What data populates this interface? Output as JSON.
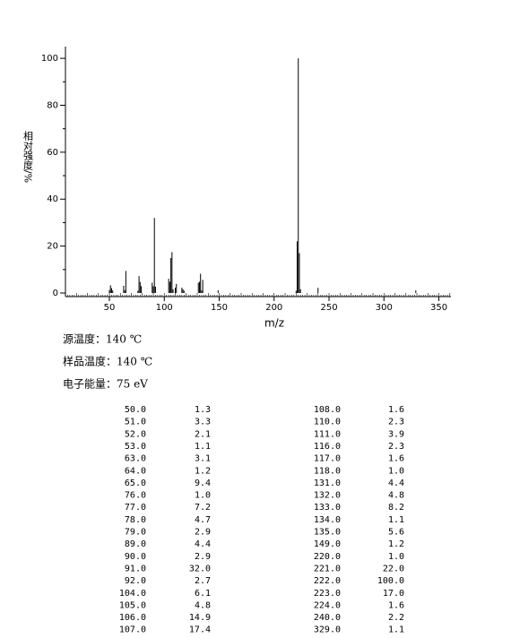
{
  "chart_data": {
    "type": "stem",
    "xlabel": "m/z",
    "ylabel": "相对强度/%",
    "xlim": [
      10,
      361
    ],
    "ylim": [
      0,
      105
    ],
    "xticks": [
      50,
      100,
      150,
      200,
      250,
      300,
      350
    ],
    "yticks": [
      0,
      20,
      40,
      60,
      80,
      100
    ],
    "color": "#000000",
    "annotations": [
      "源温度：140 ℃",
      "样品温度：140 ℃",
      "电子能量：75 eV"
    ],
    "x": [
      50,
      51,
      52,
      53,
      63,
      64,
      65,
      76,
      77,
      78,
      79,
      89,
      90,
      91,
      92,
      104,
      105,
      106,
      107,
      108,
      110,
      111,
      116,
      117,
      118,
      131,
      132,
      133,
      134,
      135,
      149,
      220,
      221,
      222,
      223,
      224,
      240,
      329
    ],
    "x_labels": [
      "50.0",
      "51.0",
      "52.0",
      "53.0",
      "63.0",
      "64.0",
      "65.0",
      "76.0",
      "77.0",
      "78.0",
      "79.0",
      "89.0",
      "90.0",
      "91.0",
      "92.0",
      "104.0",
      "105.0",
      "106.0",
      "107.0",
      "108.0",
      "110.0",
      "111.0",
      "116.0",
      "117.0",
      "118.0",
      "131.0",
      "132.0",
      "133.0",
      "134.0",
      "135.0",
      "149.0",
      "220.0",
      "221.0",
      "222.0",
      "223.0",
      "224.0",
      "240.0",
      "329.0"
    ],
    "values": [
      1.3,
      3.3,
      2.1,
      1.1,
      3.1,
      1.2,
      9.4,
      1.0,
      7.2,
      4.7,
      2.9,
      4.4,
      2.9,
      32.0,
      2.7,
      6.1,
      4.8,
      14.9,
      17.4,
      1.6,
      2.3,
      3.9,
      2.3,
      1.6,
      1.0,
      4.4,
      4.8,
      8.2,
      1.1,
      5.6,
      1.2,
      1.0,
      22.0,
      100.0,
      17.0,
      1.6,
      2.2,
      1.1
    ],
    "value_labels": [
      "1.3",
      "3.3",
      "2.1",
      "1.1",
      "3.1",
      "1.2",
      "9.4",
      "1.0",
      "7.2",
      "4.7",
      "2.9",
      "4.4",
      "2.9",
      "32.0",
      "2.7",
      "6.1",
      "4.8",
      "14.9",
      "17.4",
      "1.6",
      "2.3",
      "3.9",
      "2.3",
      "1.6",
      "1.0",
      "4.4",
      "4.8",
      "8.2",
      "1.1",
      "5.6",
      "1.2",
      "1.0",
      "22.0",
      "100.0",
      "17.0",
      "1.6",
      "2.2",
      "1.1"
    ]
  }
}
